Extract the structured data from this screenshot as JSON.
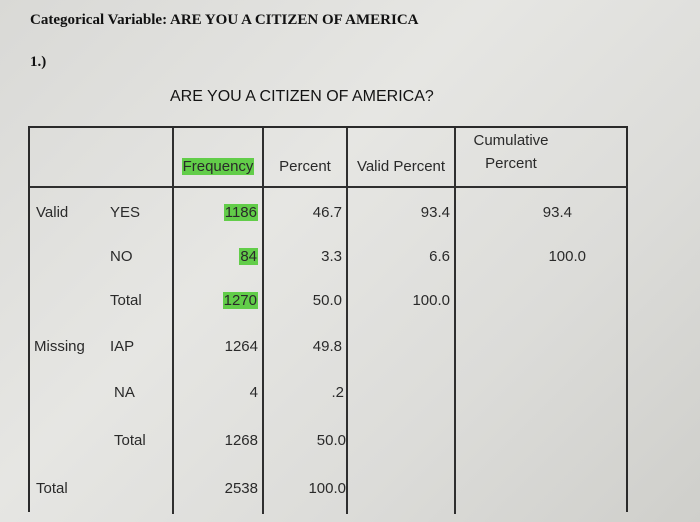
{
  "doc_heading": "Categorical Variable: ARE YOU A CITIZEN OF AMERICA",
  "question_num": "1.)",
  "table_title": "ARE YOU A CITIZEN OF AMERICA?",
  "headers": {
    "frequency": "Frequency",
    "percent": "Percent",
    "valid_percent": "Valid Percent",
    "cumulative_line1": "Cumulative",
    "cumulative_line2": "Percent"
  },
  "valid": {
    "label": "Valid",
    "yes": {
      "label": "YES",
      "frequency": "1186",
      "percent": "46.7",
      "valid_percent": "93.4",
      "cumulative": "93.4"
    },
    "no": {
      "label": "NO",
      "frequency": "84",
      "percent": "3.3",
      "valid_percent": "6.6",
      "cumulative": "100.0"
    },
    "total": {
      "label": "Total",
      "frequency": "1270",
      "percent": "50.0",
      "valid_percent": "100.0"
    }
  },
  "missing": {
    "label": "Missing",
    "iap": {
      "label": "IAP",
      "frequency": "1264",
      "percent": "49.8"
    },
    "na": {
      "label": "NA",
      "frequency": "4",
      "percent": ".2"
    },
    "total": {
      "label": "Total",
      "frequency": "1268",
      "percent": "50.0"
    }
  },
  "grand_total": {
    "label": "Total",
    "frequency": "2538",
    "percent": "100.0"
  },
  "highlight_color": "#62cd49"
}
